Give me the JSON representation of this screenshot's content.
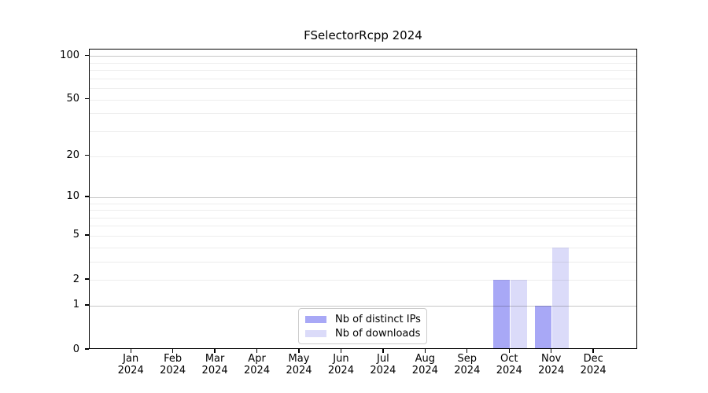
{
  "title": "FSelectorRcpp 2024",
  "chart_data": {
    "type": "bar",
    "title": "FSelectorRcpp 2024",
    "categories": [
      "Jan 2024",
      "Feb 2024",
      "Mar 2024",
      "Apr 2024",
      "May 2024",
      "Jun 2024",
      "Jul 2024",
      "Aug 2024",
      "Sep 2024",
      "Oct 2024",
      "Nov 2024",
      "Dec 2024"
    ],
    "month_labels": [
      "Jan",
      "Feb",
      "Mar",
      "Apr",
      "May",
      "Jun",
      "Jul",
      "Aug",
      "Sep",
      "Oct",
      "Nov",
      "Dec"
    ],
    "year_label": "2024",
    "series": [
      {
        "name": "Nb of distinct IPs",
        "color": "#a8a8f6",
        "values": [
          0,
          0,
          0,
          0,
          0,
          0,
          0,
          0,
          0,
          2,
          1,
          0
        ]
      },
      {
        "name": "Nb of downloads",
        "color": "#dbdbf9",
        "values": [
          0,
          0,
          0,
          0,
          0,
          0,
          0,
          0,
          0,
          2,
          4,
          0
        ]
      }
    ],
    "xlabel": "",
    "ylabel": "",
    "yscale": "log1p",
    "ylim": [
      0,
      111
    ],
    "y_ticks": [
      100,
      50,
      20,
      10,
      5,
      2,
      1,
      0
    ],
    "y_major_gridlines": [
      1,
      10,
      100
    ],
    "y_minor_gridlines": [
      2,
      3,
      4,
      5,
      6,
      7,
      8,
      9,
      20,
      30,
      40,
      50,
      60,
      70,
      80,
      90
    ],
    "grid": "horizontal",
    "legend_position": "lower-center-inside"
  },
  "legend": {
    "items": [
      {
        "label": "Nb of distinct IPs",
        "color": "#a8a8f6"
      },
      {
        "label": "Nb of downloads",
        "color": "#dbdbf9"
      }
    ]
  }
}
